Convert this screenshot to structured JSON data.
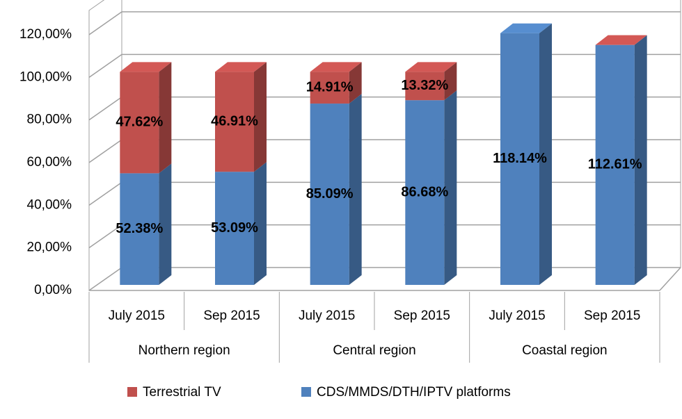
{
  "chart_data": {
    "type": "bar3d_stacked",
    "categories": [
      "July 2015",
      "Sep 2015",
      "July 2015",
      "Sep 2015",
      "July 2015",
      "Sep 2015"
    ],
    "groups": [
      "Northern region",
      "Central region",
      "Coastal region"
    ],
    "series": [
      {
        "name": "CDS/MMDS/DTH/IPTV platforms",
        "color": "#4f81bd",
        "values": [
          52.38,
          53.09,
          85.09,
          86.68,
          118.14,
          112.61
        ],
        "value_labels": [
          "52.38%",
          "53.09%",
          "85.09%",
          "86.68%",
          "118.14%",
          "112.61%"
        ]
      },
      {
        "name": "Terrestrial TV",
        "color": "#c0504d",
        "values": [
          47.62,
          46.91,
          14.91,
          13.32,
          null,
          0
        ],
        "value_labels": [
          "47.62%",
          "46.91%",
          "14.91%",
          "13.32%",
          null,
          null
        ]
      }
    ],
    "ylim": [
      0,
      120
    ],
    "yticks": [
      {
        "value": 0,
        "label": "0,00%"
      },
      {
        "value": 20,
        "label": "20,00%"
      },
      {
        "value": 40,
        "label": "40,00%"
      },
      {
        "value": 60,
        "label": "60,00%"
      },
      {
        "value": 80,
        "label": "80,00%"
      },
      {
        "value": 100,
        "label": "100,00%"
      },
      {
        "value": 120,
        "label": "120,00%"
      }
    ],
    "grid": true,
    "legend": "bottom"
  }
}
